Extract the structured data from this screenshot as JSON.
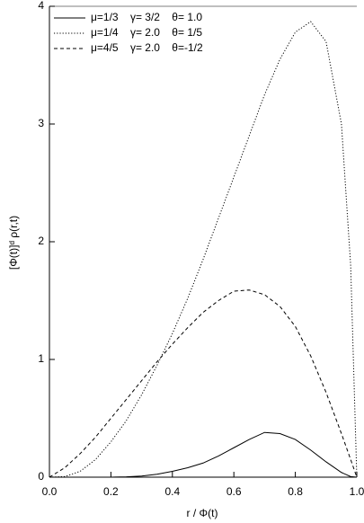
{
  "chart_data": {
    "type": "line",
    "x_label": "r / Φ(t)",
    "y_label": "[Φ(t)]ᵈ ρ(r,t)",
    "x": [
      0,
      0.05,
      0.1,
      0.15,
      0.2,
      0.25,
      0.3,
      0.35,
      0.4,
      0.45,
      0.5,
      0.55,
      0.6,
      0.65,
      0.7,
      0.75,
      0.8,
      0.85,
      0.9,
      0.95,
      0.98,
      1.0
    ],
    "series": [
      {
        "name": "μ=1/3    γ= 3/2    θ= 1.0",
        "color": "#000",
        "dash": "solid",
        "values": [
          0,
          0,
          0,
          0,
          0,
          0.003,
          0.01,
          0.025,
          0.05,
          0.08,
          0.12,
          0.18,
          0.25,
          0.32,
          0.38,
          0.37,
          0.32,
          0.23,
          0.13,
          0.04,
          0.005,
          0
        ]
      },
      {
        "name": "μ=1/4    γ= 2.0    θ= 1/5",
        "color": "#000",
        "dash": "dotted",
        "values": [
          0,
          0.005,
          0.05,
          0.15,
          0.3,
          0.48,
          0.7,
          0.95,
          1.22,
          1.52,
          1.85,
          2.2,
          2.55,
          2.9,
          3.25,
          3.55,
          3.78,
          3.87,
          3.7,
          3.0,
          1.8,
          0
        ]
      },
      {
        "name": "μ=4/5    γ= 2.0    θ=-1/2",
        "color": "#000",
        "dash": "dashed",
        "values": [
          0,
          0.08,
          0.2,
          0.34,
          0.5,
          0.66,
          0.82,
          0.98,
          1.13,
          1.27,
          1.4,
          1.5,
          1.58,
          1.59,
          1.55,
          1.45,
          1.28,
          1.03,
          0.72,
          0.37,
          0.15,
          0
        ]
      }
    ],
    "xlim": [
      0,
      1
    ],
    "ylim": [
      0,
      4
    ],
    "xticks": [
      {
        "value": 0,
        "label": "0.0"
      },
      0.2,
      0.4,
      0.6,
      0.8,
      {
        "value": 1,
        "label": "1.0"
      }
    ],
    "yticks": [
      0,
      1,
      2,
      3,
      4
    ],
    "legend": "upper left"
  }
}
